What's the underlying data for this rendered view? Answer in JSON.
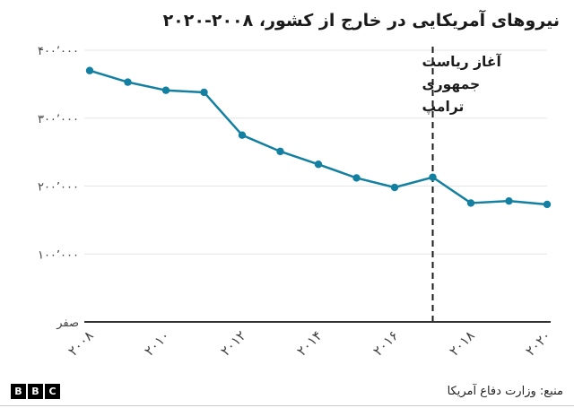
{
  "header": {
    "title": "نیروهای آمریکایی در خارج از کشور، ۲۰۰۸-۲۰۲۰"
  },
  "footer": {
    "source": "منبع: وزارت دفاع آمریکا",
    "logo_letters": [
      "B",
      "B",
      "C"
    ]
  },
  "chart_data": {
    "type": "line",
    "title": "نیروهای آمریکایی در خارج از کشور، ۲۰۰۸-۲۰۲۰",
    "x": [
      2008,
      2009,
      2010,
      2011,
      2012,
      2013,
      2014,
      2015,
      2016,
      2017,
      2018,
      2019,
      2020
    ],
    "series": [
      {
        "name": "us-troops-overseas",
        "values": [
          370000,
          353000,
          341000,
          338000,
          275000,
          251000,
          232000,
          212000,
          198000,
          213000,
          175000,
          178000,
          173000
        ]
      }
    ],
    "xlim": [
      2008,
      2020
    ],
    "ylim": [
      0,
      400000
    ],
    "yticks": {
      "values": [
        0,
        100000,
        200000,
        300000,
        400000
      ],
      "labels": [
        "صفر",
        "۱۰۰٬۰۰۰",
        "۲۰۰٬۰۰۰",
        "۳۰۰٬۰۰۰",
        "۴۰۰٬۰۰۰"
      ]
    },
    "xticks": {
      "values": [
        2008,
        2010,
        2012,
        2014,
        2016,
        2018,
        2020
      ],
      "labels": [
        "۲۰۰۸",
        "۲۰۱۰",
        "۲۰۱۲",
        "۲۰۱۴",
        "۲۰۱۶",
        "۲۰۱۸",
        "۲۰۲۰"
      ]
    },
    "annotation": {
      "x": 2017,
      "lines": [
        "آغاز ریاست",
        "جمهوری",
        "ترامپ"
      ]
    },
    "grid": true,
    "legend_position": "none",
    "colors": {
      "line": "#1380A1",
      "grid": "#e6e6e6",
      "axis": "#333333",
      "dashed": "#1a1a1a",
      "tick_text": "#404040",
      "annotation_text": "#1a1a1a"
    }
  }
}
